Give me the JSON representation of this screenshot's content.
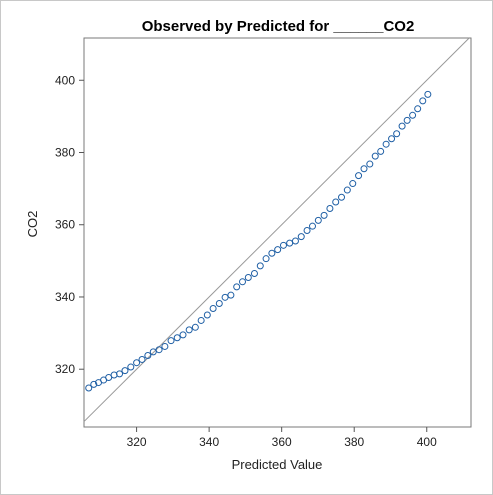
{
  "chart_data": {
    "type": "scatter",
    "title": "Observed by Predicted for ______CO2",
    "xlabel": "Predicted Value",
    "ylabel": "CO2",
    "xlim": [
      305.5,
      412.2
    ],
    "ylim": [
      304.0,
      411.7
    ],
    "x_ticks": [
      320,
      340,
      360,
      380,
      400
    ],
    "y_ticks": [
      320,
      340,
      360,
      380,
      400
    ],
    "reference_line": "y = x",
    "grid": false,
    "marker_color": "#1f5fa5",
    "line_color": "#999999",
    "series": [
      {
        "x": [
          306.8,
          308.2,
          309.5,
          310.9,
          312.3,
          313.8,
          315.3,
          316.8,
          318.4,
          320.0,
          321.5,
          323.1,
          324.6,
          326.2,
          327.8,
          329.5,
          331.2,
          332.8,
          334.5,
          336.2,
          337.8,
          339.5,
          341.1,
          342.8,
          344.4,
          346.0,
          347.6,
          349.2,
          350.8,
          352.5,
          354.1,
          355.7,
          357.3,
          358.9,
          360.5,
          362.2,
          363.8,
          365.4,
          367.0,
          368.5,
          370.1,
          371.7,
          373.3,
          374.9,
          376.5,
          378.1,
          379.6,
          381.2,
          382.7,
          384.3,
          385.8,
          387.3,
          388.8,
          390.3,
          391.7,
          393.2,
          394.6,
          396.1,
          397.5,
          398.9,
          400.3
        ],
        "y": [
          314.8,
          315.8,
          316.3,
          317.0,
          317.7,
          318.4,
          318.7,
          319.6,
          320.6,
          321.8,
          322.7,
          323.8,
          324.8,
          325.4,
          326.3,
          327.9,
          328.7,
          329.5,
          330.9,
          331.6,
          333.5,
          335.0,
          336.8,
          338.2,
          339.9,
          340.5,
          342.8,
          344.2,
          345.4,
          346.5,
          348.6,
          350.6,
          352.1,
          353.1,
          354.3,
          354.9,
          355.5,
          356.7,
          358.4,
          359.6,
          361.2,
          362.6,
          364.5,
          366.3,
          367.6,
          369.6,
          371.4,
          373.6,
          375.5,
          376.8,
          379.0,
          380.3,
          382.3,
          383.8,
          385.2,
          387.3,
          388.9,
          390.3,
          392.1,
          394.3,
          396.1
        ]
      }
    ]
  }
}
